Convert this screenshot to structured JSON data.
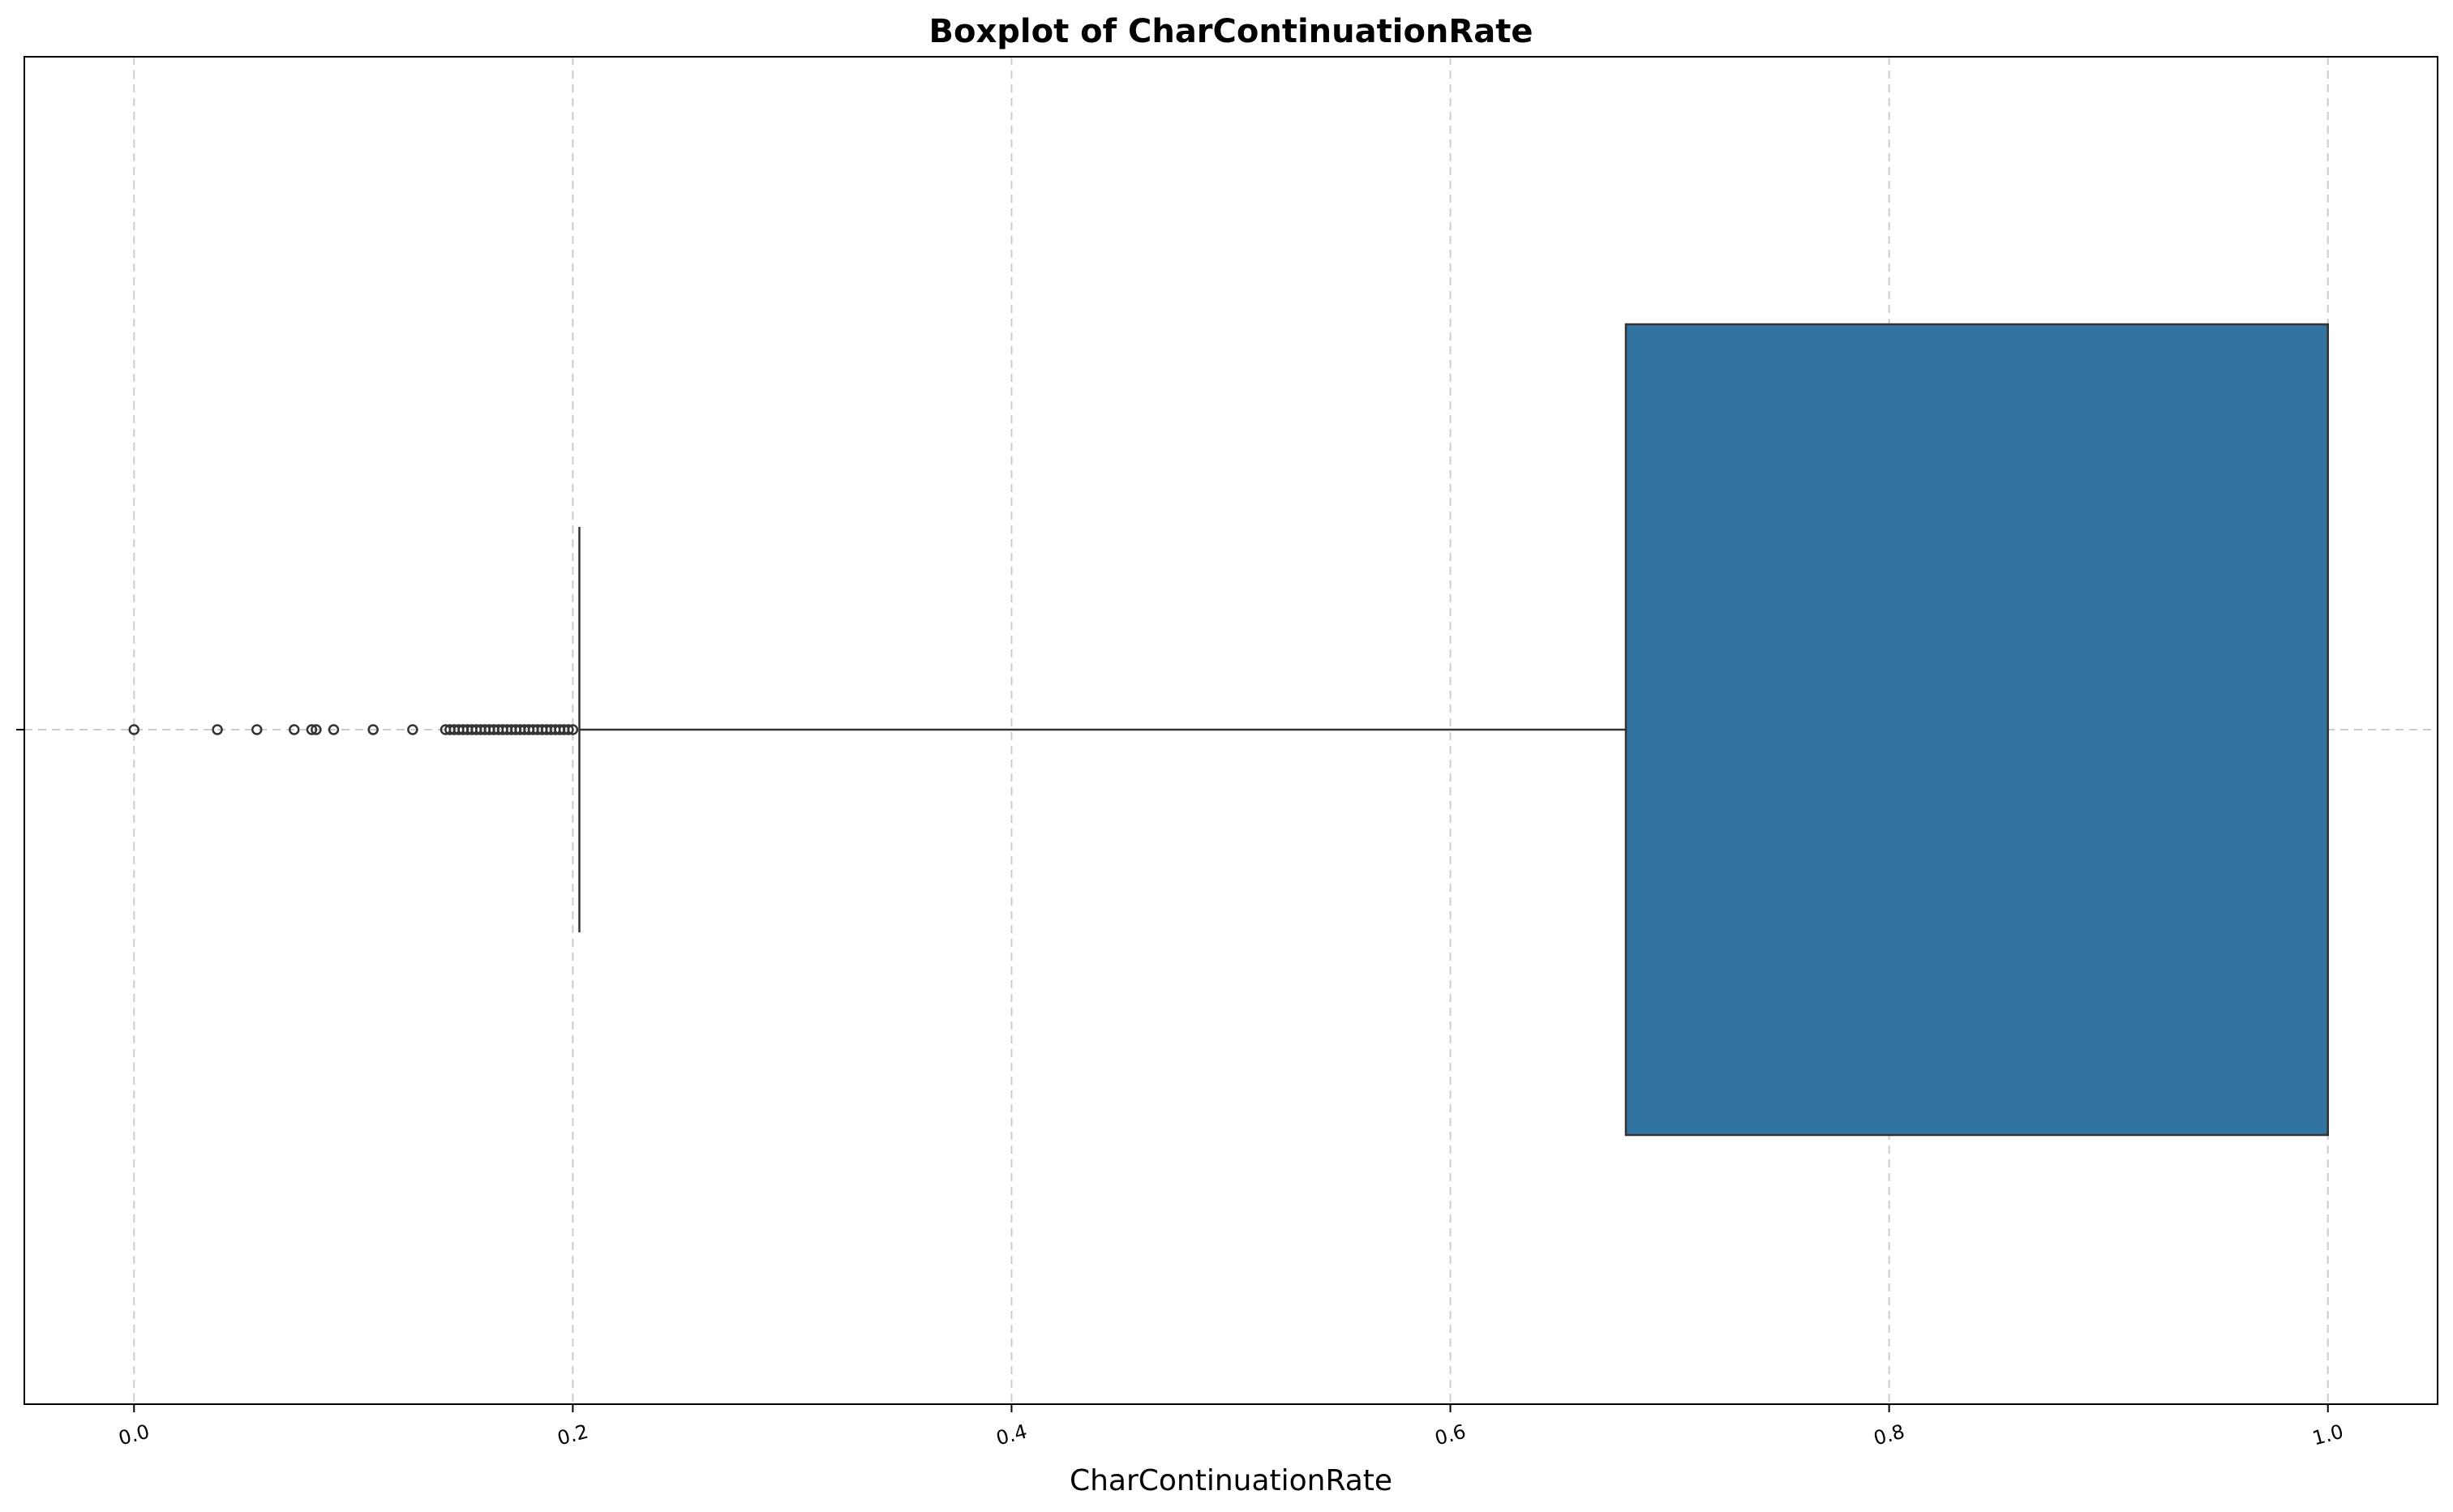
{
  "chart_data": {
    "type": "box",
    "title": "Boxplot of CharContinuationRate",
    "xlabel": "CharContinuationRate",
    "ylabel": "",
    "orientation": "horizontal",
    "xlim": [
      -0.05,
      1.05
    ],
    "x_ticks": [
      0.0,
      0.2,
      0.4,
      0.6,
      0.8,
      1.0
    ],
    "x_tick_labels": [
      "0.0",
      "0.2",
      "0.4",
      "0.6",
      "0.8",
      "1.0"
    ],
    "grid": true,
    "legend": "none",
    "colors": {
      "box": "#3274a1",
      "line": "#333333",
      "grid": "#cccccc"
    },
    "box": {
      "q1": 0.68,
      "median": 1.0,
      "q3": 1.0,
      "whisker_low": 0.203,
      "whisker_high": 1.0
    },
    "outliers": [
      0.0,
      0.038,
      0.056,
      0.073,
      0.081,
      0.083,
      0.091,
      0.109,
      0.127,
      0.142,
      0.144,
      0.146,
      0.148,
      0.15,
      0.152,
      0.154,
      0.156,
      0.158,
      0.16,
      0.162,
      0.164,
      0.166,
      0.168,
      0.17,
      0.172,
      0.174,
      0.176,
      0.178,
      0.18,
      0.182,
      0.184,
      0.186,
      0.188,
      0.19,
      0.192,
      0.194,
      0.196,
      0.198,
      0.2
    ]
  }
}
